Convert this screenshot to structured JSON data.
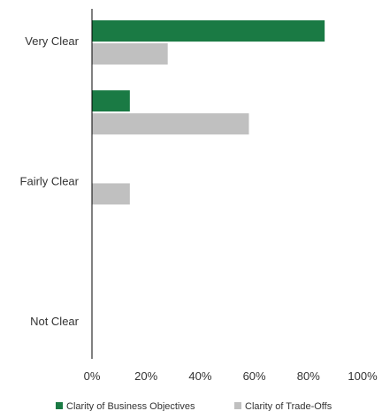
{
  "chart_data": {
    "type": "bar",
    "orientation": "horizontal",
    "categories": [
      "Very Clear",
      "",
      "Fairly Clear",
      "",
      "Not Clear"
    ],
    "series": [
      {
        "name": "Clarity of Business Objectives",
        "color": "#1a7a44",
        "values": [
          86,
          14,
          0,
          0,
          0
        ]
      },
      {
        "name": "Clarity of Trade-Offs",
        "color": "#c0c0c0",
        "values": [
          28,
          58,
          14,
          0,
          0
        ]
      }
    ],
    "x_ticks": [
      "0%",
      "20%",
      "40%",
      "60%",
      "80%",
      "100%"
    ],
    "xlim": [
      0,
      100
    ],
    "grid": false,
    "legend_position": "bottom",
    "title": "",
    "xlabel": "",
    "ylabel": ""
  }
}
